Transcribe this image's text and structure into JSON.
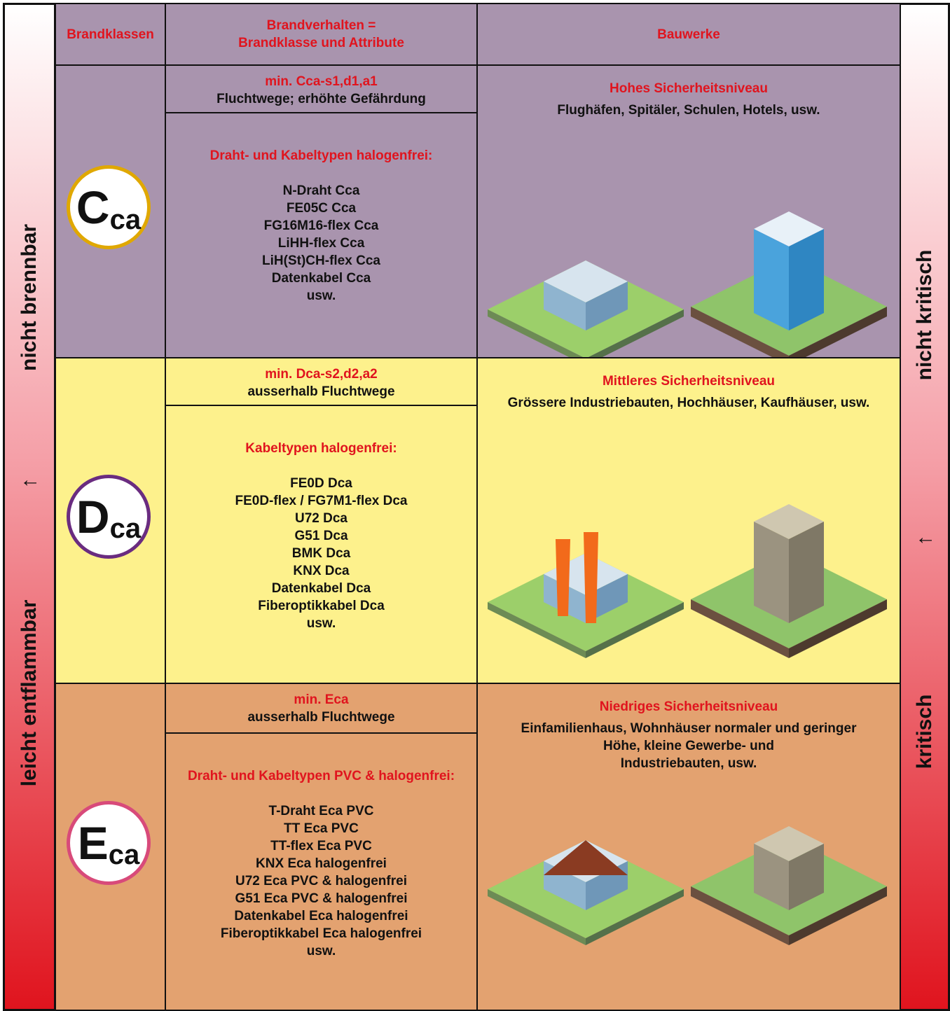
{
  "header": {
    "col1": "Brandklassen",
    "col2": [
      "Brandverhalten =",
      "Brandklasse und Attribute"
    ],
    "col3": "Bauwerke"
  },
  "rows": [
    {
      "class_main": "C",
      "class_sub": "ca",
      "min_label": "min. Cca-s1,d1,a1",
      "min_desc": "Fluchtwege; erhöhte Gefährdung",
      "types_title": "Draht- und Kabeltypen halogenfrei:",
      "types": [
        "N-Draht Cca",
        "FE05C Cca",
        "FG16M16-flex Cca",
        "LiHH-flex Cca",
        "LiH(St)CH-flex Cca",
        "Datenkabel Cca",
        "usw."
      ],
      "level": "Hohes Sicherheitsniveau",
      "buildings": [
        "Flughäfen, Spitäler, Schulen, Hotels, usw."
      ]
    },
    {
      "class_main": "D",
      "class_sub": "ca",
      "min_label": "min. Dca-s2,d2,a2",
      "min_desc": "ausserhalb Fluchtwege",
      "types_title": "Kabeltypen halogenfrei:",
      "types": [
        "FE0D Dca",
        "FE0D-flex / FG7M1-flex Dca",
        "U72 Dca",
        "G51 Dca",
        "BMK Dca",
        "KNX Dca",
        "Datenkabel Dca",
        "Fiberoptikkabel Dca",
        "usw."
      ],
      "level": "Mittleres Sicherheitsniveau",
      "buildings": [
        "Grössere Industriebauten, Hochhäuser, Kaufhäuser, usw."
      ]
    },
    {
      "class_main": "E",
      "class_sub": "ca",
      "min_label": "min. Eca",
      "min_desc": "ausserhalb Fluchtwege",
      "types_title": "Draht- und Kabeltypen PVC & halogenfrei:",
      "types": [
        "T-Draht Eca PVC",
        "TT Eca PVC",
        "TT-flex Eca PVC",
        "KNX Eca halogenfrei",
        "U72 Eca PVC & halogenfrei",
        "G51 Eca PVC & halogenfrei",
        "Datenkabel Eca halogenfrei",
        "Fiberoptikkabel Eca halogenfrei",
        "usw."
      ],
      "level": "Niedriges Sicherheitsniveau",
      "buildings": [
        "Einfamilienhaus, Wohnhäuser normaler und geringer",
        "Höhe, kleine Gewerbe- und",
        "Industriebauten, usw."
      ]
    }
  ],
  "left_scale": {
    "top": "nicht brennbar",
    "arrow": "↑",
    "bottom": "leicht entflammbar"
  },
  "right_scale": {
    "top": "nicht kritisch",
    "arrow": "↑",
    "bottom": "kritisch"
  }
}
